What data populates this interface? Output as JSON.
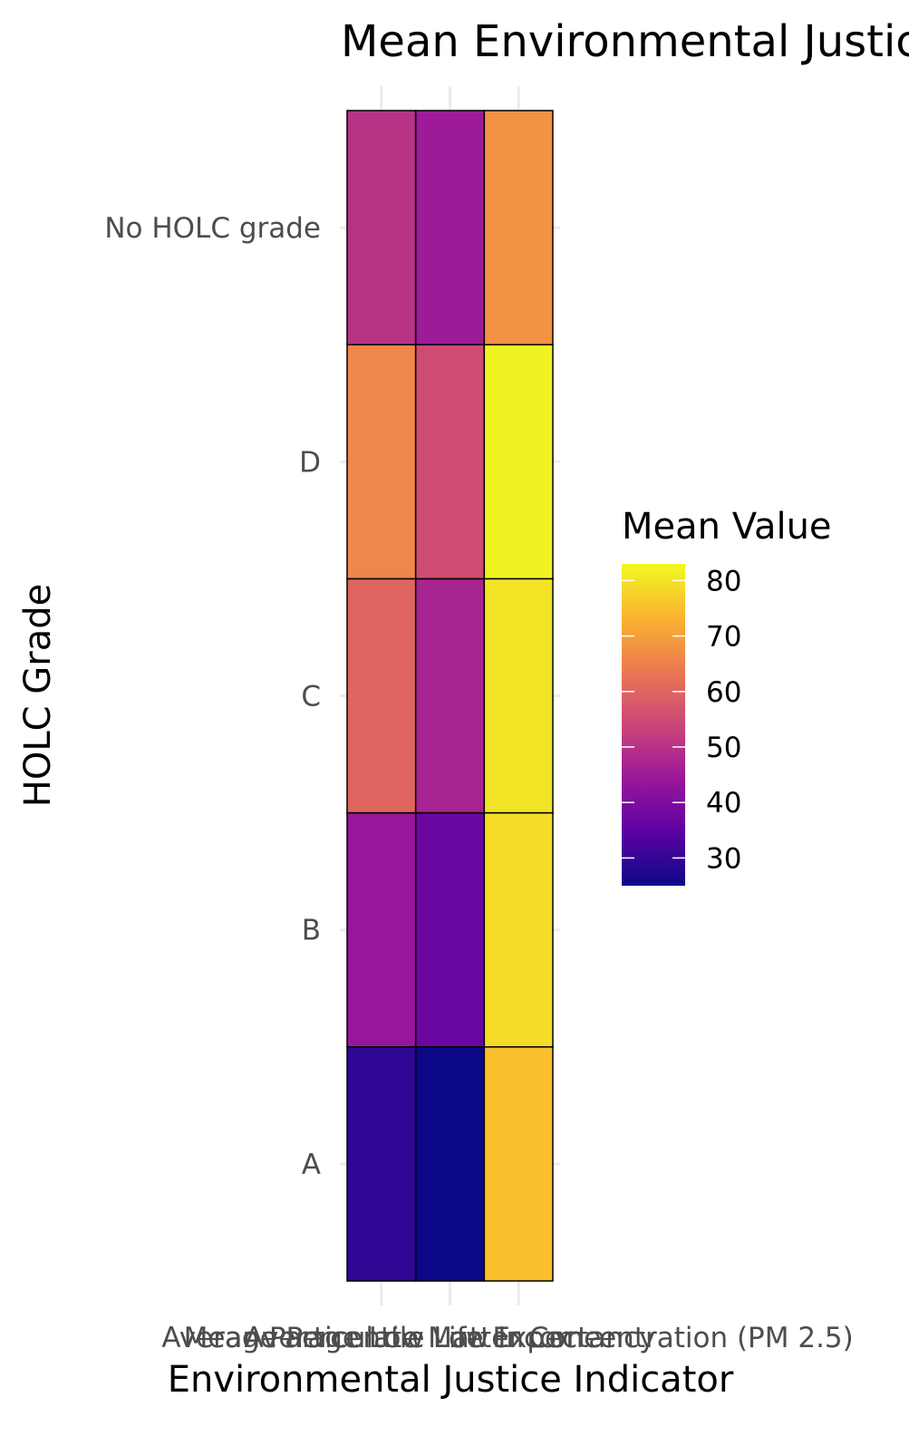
{
  "chart_data": {
    "type": "heatmap",
    "title": "Mean Environmental Justice Indicators by HOLC Grade",
    "xlabel": "Environmental Justice Indicator",
    "ylabel": "HOLC Grade",
    "x_categories": [
      "Average Percentile Low Income",
      "Average Low Life Expectancy",
      "Mean Particulate Matter Concentration (PM 2.5)"
    ],
    "y_categories": [
      "A",
      "B",
      "C",
      "D",
      "No HOLC grade"
    ],
    "values": [
      [
        29,
        25,
        75
      ],
      [
        44,
        37,
        79
      ],
      [
        60,
        47,
        80
      ],
      [
        66,
        55,
        82
      ],
      [
        50,
        45,
        68
      ]
    ],
    "legend": {
      "title": "Mean Value",
      "ticks": [
        30,
        40,
        50,
        60,
        70,
        80
      ],
      "limits": [
        25,
        83
      ],
      "placement": "right"
    },
    "colormap": [
      "#0d0887",
      "#5b02a3",
      "#9a179b",
      "#cb4678",
      "#eb7852",
      "#fbb32f",
      "#f0f921"
    ],
    "grid": true
  }
}
